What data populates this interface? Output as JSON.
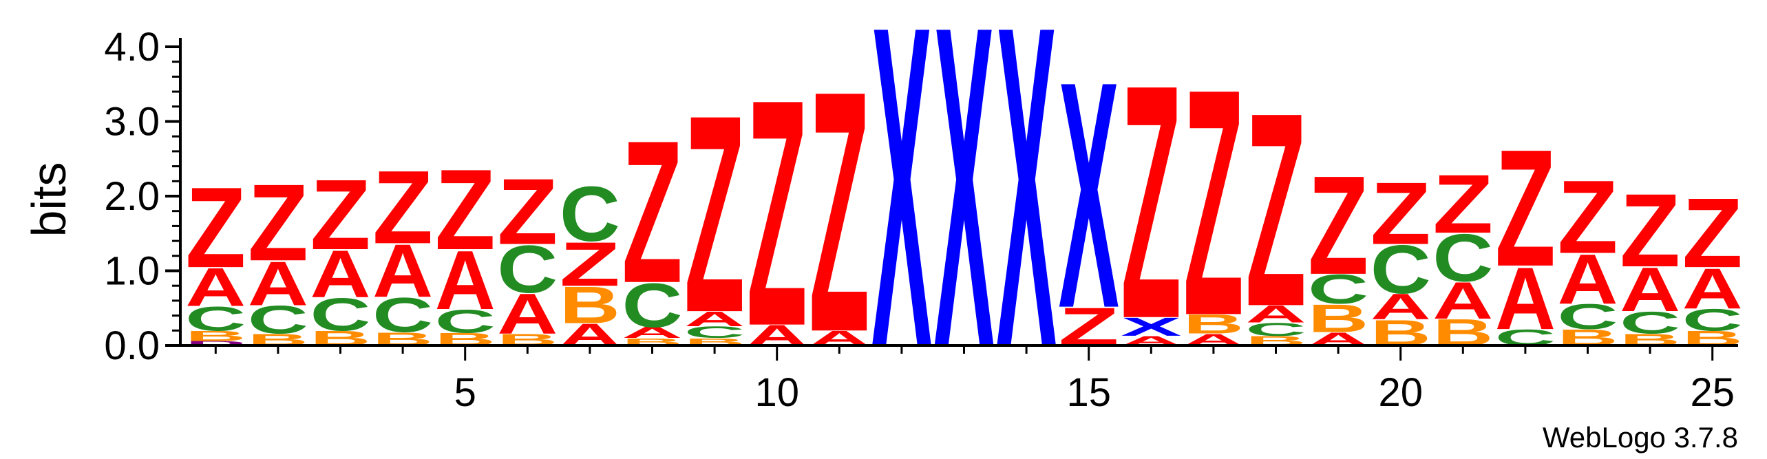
{
  "chart_data": {
    "type": "sequence-logo",
    "ylabel": "bits",
    "ylim": [
      0,
      4.0
    ],
    "y_ticks": [
      "0.0",
      "1.0",
      "2.0",
      "3.0",
      "4.0"
    ],
    "x_ticks": [
      "5",
      "10",
      "15",
      "20",
      "25"
    ],
    "x_tick_values": [
      5,
      10,
      15,
      20,
      25
    ],
    "footer": "WebLogo 3.7.8",
    "colors": {
      "Z": "#ff0000",
      "A": "#ff0000",
      "X": "#0000ff",
      "C": "#228b22",
      "B": "#ff8c00",
      "D": "#800080"
    },
    "positions": [
      {
        "pos": 1,
        "stack": [
          {
            "l": "D",
            "h": 0.06
          },
          {
            "l": "B",
            "h": 0.14
          },
          {
            "l": "C",
            "h": 0.33
          },
          {
            "l": "A",
            "h": 0.52
          },
          {
            "l": "Z",
            "h": 1.1
          }
        ]
      },
      {
        "pos": 2,
        "stack": [
          {
            "l": "B",
            "h": 0.16
          },
          {
            "l": "C",
            "h": 0.38
          },
          {
            "l": "A",
            "h": 0.6
          },
          {
            "l": "Z",
            "h": 1.05
          }
        ]
      },
      {
        "pos": 3,
        "stack": [
          {
            "l": "B",
            "h": 0.2
          },
          {
            "l": "C",
            "h": 0.45
          },
          {
            "l": "A",
            "h": 0.64
          },
          {
            "l": "Z",
            "h": 0.96
          }
        ]
      },
      {
        "pos": 4,
        "stack": [
          {
            "l": "B",
            "h": 0.18
          },
          {
            "l": "C",
            "h": 0.47
          },
          {
            "l": "A",
            "h": 0.72
          },
          {
            "l": "Z",
            "h": 1.0
          }
        ]
      },
      {
        "pos": 5,
        "stack": [
          {
            "l": "B",
            "h": 0.17
          },
          {
            "l": "C",
            "h": 0.32
          },
          {
            "l": "A",
            "h": 0.8
          },
          {
            "l": "Z",
            "h": 1.1
          }
        ]
      },
      {
        "pos": 6,
        "stack": [
          {
            "l": "B",
            "h": 0.16
          },
          {
            "l": "A",
            "h": 0.55
          },
          {
            "l": "C",
            "h": 0.65
          },
          {
            "l": "Z",
            "h": 0.9
          }
        ]
      },
      {
        "pos": 7,
        "stack": [
          {
            "l": "A",
            "h": 0.3
          },
          {
            "l": "B",
            "h": 0.5
          },
          {
            "l": "Z",
            "h": 0.6
          },
          {
            "l": "C",
            "h": 0.75
          }
        ]
      },
      {
        "pos": 8,
        "stack": [
          {
            "l": "B",
            "h": 0.1
          },
          {
            "l": "A",
            "h": 0.15
          },
          {
            "l": "C",
            "h": 0.6
          },
          {
            "l": "Z",
            "h": 1.95
          }
        ]
      },
      {
        "pos": 9,
        "stack": [
          {
            "l": "B",
            "h": 0.1
          },
          {
            "l": "C",
            "h": 0.16
          },
          {
            "l": "A",
            "h": 0.2
          },
          {
            "l": "Z",
            "h": 2.7
          }
        ]
      },
      {
        "pos": 10,
        "stack": [
          {
            "l": "A",
            "h": 0.28
          },
          {
            "l": "Z",
            "h": 3.1
          }
        ]
      },
      {
        "pos": 11,
        "stack": [
          {
            "l": "A",
            "h": 0.2
          },
          {
            "l": "Z",
            "h": 3.3
          }
        ]
      },
      {
        "pos": 12,
        "stack": [
          {
            "l": "X",
            "h": 4.4
          }
        ]
      },
      {
        "pos": 13,
        "stack": [
          {
            "l": "X",
            "h": 4.4
          }
        ]
      },
      {
        "pos": 14,
        "stack": [
          {
            "l": "X",
            "h": 4.4
          }
        ]
      },
      {
        "pos": 15,
        "stack": [
          {
            "l": "Z",
            "h": 0.52
          },
          {
            "l": "X",
            "h": 3.1
          }
        ]
      },
      {
        "pos": 16,
        "stack": [
          {
            "l": "A",
            "h": 0.13
          },
          {
            "l": "X",
            "h": 0.25
          },
          {
            "l": "Z",
            "h": 3.2
          }
        ]
      },
      {
        "pos": 17,
        "stack": [
          {
            "l": "A",
            "h": 0.16
          },
          {
            "l": "B",
            "h": 0.26
          },
          {
            "l": "Z",
            "h": 3.1
          }
        ]
      },
      {
        "pos": 18,
        "stack": [
          {
            "l": "B",
            "h": 0.13
          },
          {
            "l": "C",
            "h": 0.18
          },
          {
            "l": "A",
            "h": 0.23
          },
          {
            "l": "Z",
            "h": 2.65
          }
        ]
      },
      {
        "pos": 19,
        "stack": [
          {
            "l": "A",
            "h": 0.18
          },
          {
            "l": "B",
            "h": 0.38
          },
          {
            "l": "C",
            "h": 0.4
          },
          {
            "l": "Z",
            "h": 1.35
          }
        ]
      },
      {
        "pos": 20,
        "stack": [
          {
            "l": "B",
            "h": 0.35
          },
          {
            "l": "A",
            "h": 0.35
          },
          {
            "l": "C",
            "h": 0.66
          },
          {
            "l": "Z",
            "h": 0.85
          }
        ]
      },
      {
        "pos": 21,
        "stack": [
          {
            "l": "B",
            "h": 0.36
          },
          {
            "l": "A",
            "h": 0.5
          },
          {
            "l": "C",
            "h": 0.65
          },
          {
            "l": "Z",
            "h": 0.8
          }
        ]
      },
      {
        "pos": 22,
        "stack": [
          {
            "l": "C",
            "h": 0.22
          },
          {
            "l": "A",
            "h": 0.85
          },
          {
            "l": "Z",
            "h": 1.6
          }
        ]
      },
      {
        "pos": 23,
        "stack": [
          {
            "l": "B",
            "h": 0.22
          },
          {
            "l": "C",
            "h": 0.34
          },
          {
            "l": "A",
            "h": 0.68
          },
          {
            "l": "Z",
            "h": 1.0
          }
        ]
      },
      {
        "pos": 24,
        "stack": [
          {
            "l": "B",
            "h": 0.16
          },
          {
            "l": "C",
            "h": 0.3
          },
          {
            "l": "A",
            "h": 0.6
          },
          {
            "l": "Z",
            "h": 1.0
          }
        ]
      },
      {
        "pos": 25,
        "stack": [
          {
            "l": "B",
            "h": 0.2
          },
          {
            "l": "C",
            "h": 0.3
          },
          {
            "l": "A",
            "h": 0.55
          },
          {
            "l": "Z",
            "h": 0.95
          }
        ]
      }
    ]
  }
}
